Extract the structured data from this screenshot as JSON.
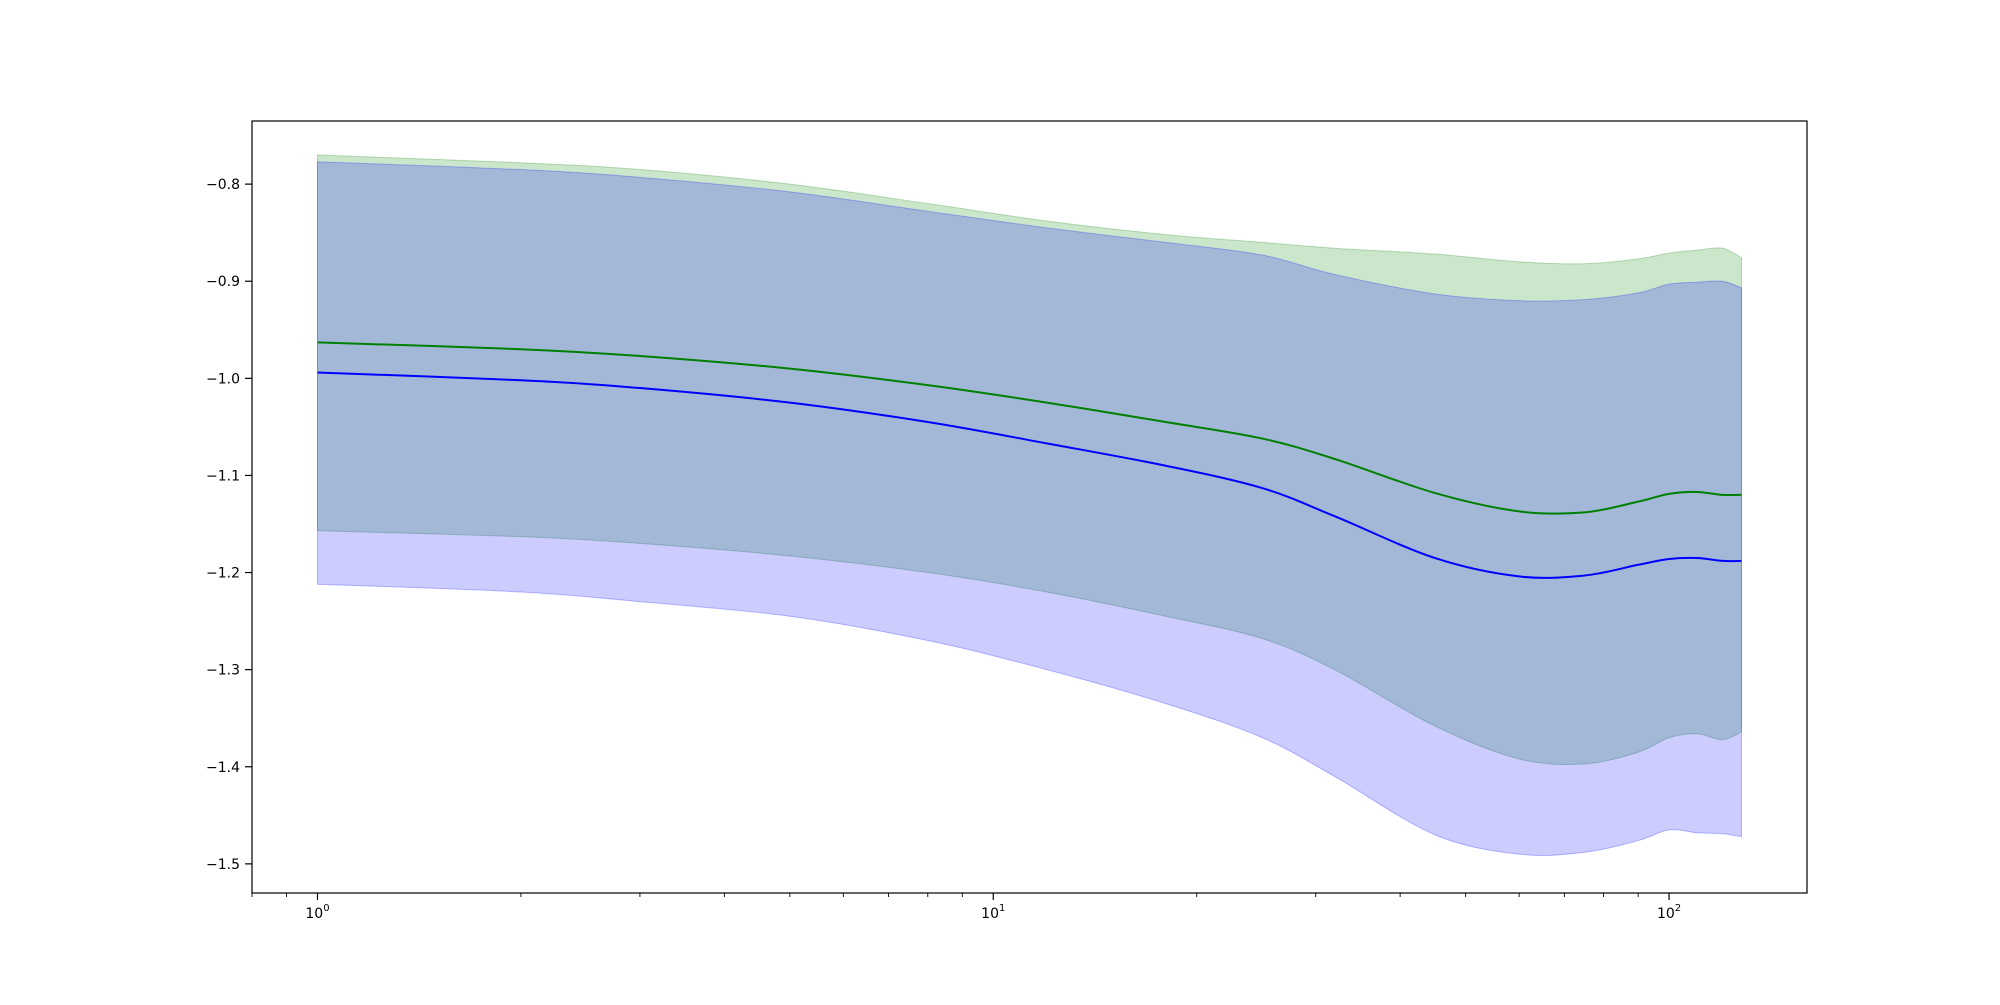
{
  "chart_data": {
    "type": "line",
    "title": "",
    "xlabel": "",
    "ylabel": "",
    "xscale": "log",
    "xlim": [
      0.8,
      160
    ],
    "ylim": [
      -1.53,
      -0.735
    ],
    "grid": false,
    "legend": "none",
    "x_ticks": [
      {
        "value": 1,
        "label_base": "10",
        "label_exp": "0"
      },
      {
        "value": 10,
        "label_base": "10",
        "label_exp": "1"
      },
      {
        "value": 100,
        "label_base": "10",
        "label_exp": "2"
      }
    ],
    "y_ticks": [
      {
        "value": -0.8,
        "label": "−0.8"
      },
      {
        "value": -0.9,
        "label": "−0.9"
      },
      {
        "value": -1.0,
        "label": "−1.0"
      },
      {
        "value": -1.1,
        "label": "−1.1"
      },
      {
        "value": -1.2,
        "label": "−1.2"
      },
      {
        "value": -1.3,
        "label": "−1.3"
      },
      {
        "value": -1.4,
        "label": "−1.4"
      },
      {
        "value": -1.5,
        "label": "−1.5"
      }
    ],
    "x": [
      1,
      2,
      3,
      5,
      8,
      12,
      18,
      25,
      32,
      45,
      60,
      75,
      90,
      100,
      110,
      120,
      128
    ],
    "series": [
      {
        "color": "#008000",
        "band_color": "#008000",
        "band_opacity": 0.2,
        "mean": [
          -0.963,
          -0.97,
          -0.977,
          -0.99,
          -1.007,
          -1.025,
          -1.045,
          -1.062,
          -1.083,
          -1.118,
          -1.137,
          -1.138,
          -1.127,
          -1.119,
          -1.117,
          -1.12,
          -1.12
        ],
        "upper": [
          -0.77,
          -0.778,
          -0.785,
          -0.8,
          -0.82,
          -0.838,
          -0.852,
          -0.86,
          -0.866,
          -0.872,
          -0.88,
          -0.882,
          -0.877,
          -0.871,
          -0.868,
          -0.866,
          -0.876
        ],
        "lower": [
          -1.157,
          -1.163,
          -1.17,
          -1.183,
          -1.2,
          -1.22,
          -1.245,
          -1.268,
          -1.3,
          -1.358,
          -1.392,
          -1.397,
          -1.385,
          -1.37,
          -1.366,
          -1.372,
          -1.364
        ]
      },
      {
        "color": "#0000ff",
        "band_color": "#0000ff",
        "band_opacity": 0.2,
        "mean": [
          -0.994,
          -1.002,
          -1.01,
          -1.025,
          -1.045,
          -1.067,
          -1.09,
          -1.113,
          -1.142,
          -1.185,
          -1.204,
          -1.203,
          -1.192,
          -1.186,
          -1.185,
          -1.188,
          -1.188
        ],
        "upper": [
          -0.777,
          -0.785,
          -0.793,
          -0.808,
          -0.828,
          -0.845,
          -0.86,
          -0.873,
          -0.893,
          -0.913,
          -0.92,
          -0.919,
          -0.912,
          -0.903,
          -0.901,
          -0.9,
          -0.907
        ],
        "lower": [
          -1.212,
          -1.22,
          -1.23,
          -1.245,
          -1.27,
          -1.3,
          -1.335,
          -1.37,
          -1.41,
          -1.47,
          -1.49,
          -1.488,
          -1.476,
          -1.465,
          -1.468,
          -1.469,
          -1.472
        ]
      }
    ]
  }
}
